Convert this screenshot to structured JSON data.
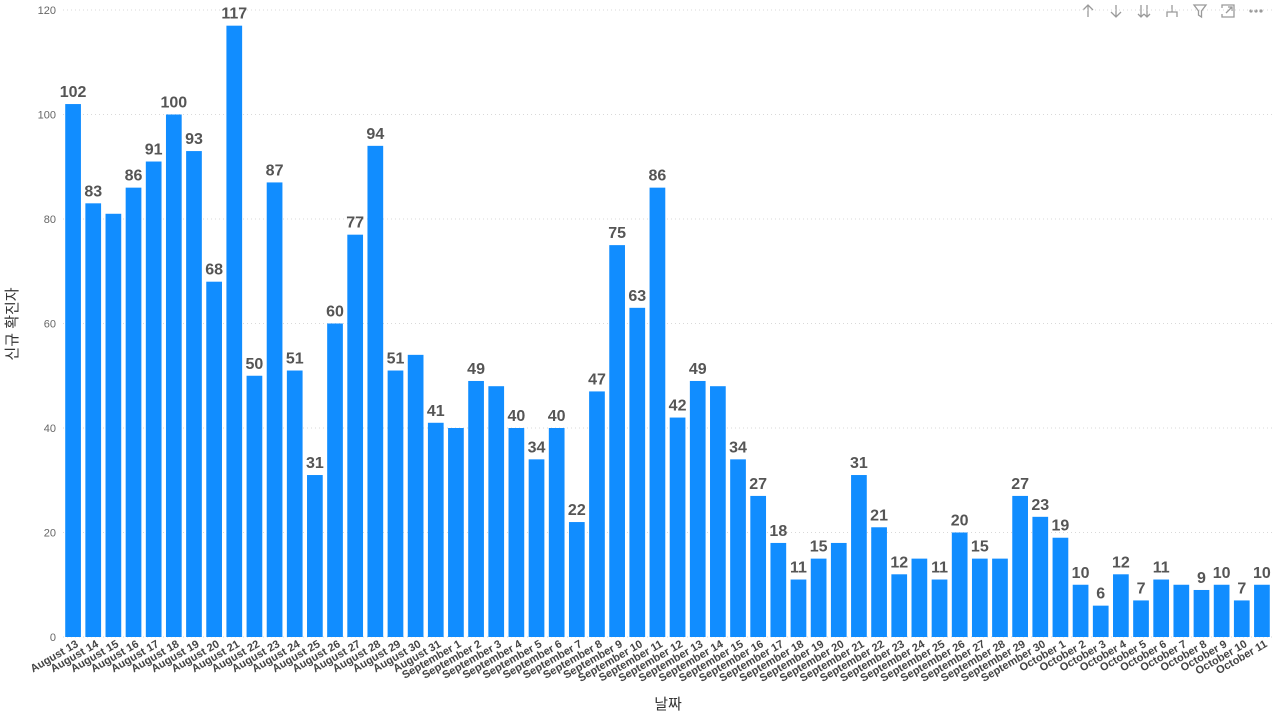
{
  "toolbar": {
    "icons": [
      "arrow-up-icon",
      "arrow-down-icon",
      "double-arrow-down-icon",
      "hierarchy-icon",
      "filter-icon",
      "focus-mode-icon",
      "more-options-icon"
    ]
  },
  "chart_data": {
    "type": "bar",
    "xlabel": "날짜",
    "ylabel": "신규 확진자",
    "ylim": [
      0,
      120
    ],
    "yticks": [
      0,
      20,
      40,
      60,
      80,
      100,
      120
    ],
    "grid": true,
    "bar_color": "#118DFF",
    "categories": [
      "August 13",
      "August 14",
      "August 15",
      "August 16",
      "August 17",
      "August 18",
      "August 19",
      "August 20",
      "August 21",
      "August 22",
      "August 23",
      "August 24",
      "August 25",
      "August 26",
      "August 27",
      "August 28",
      "August 29",
      "August 30",
      "August 31",
      "September 1",
      "September 2",
      "September 3",
      "September 4",
      "September 5",
      "September 6",
      "September 7",
      "September 8",
      "September 9",
      "September 10",
      "September 11",
      "September 12",
      "September 13",
      "September 14",
      "September 15",
      "September 16",
      "September 17",
      "September 18",
      "September 19",
      "September 20",
      "September 21",
      "September 22",
      "September 23",
      "September 24",
      "September 25",
      "September 26",
      "September 27",
      "September 28",
      "September 29",
      "September 30",
      "October 1",
      "October 2",
      "October 3",
      "October 4",
      "October 5",
      "October 6",
      "October 7",
      "October 8",
      "October 9",
      "October 10",
      "October 11"
    ],
    "values": [
      102,
      83,
      81,
      86,
      91,
      100,
      93,
      68,
      117,
      50,
      87,
      51,
      31,
      60,
      77,
      94,
      51,
      54,
      41,
      40,
      49,
      48,
      40,
      34,
      40,
      22,
      47,
      75,
      63,
      86,
      42,
      49,
      48,
      34,
      27,
      18,
      11,
      15,
      18,
      31,
      21,
      12,
      15,
      11,
      20,
      15,
      15,
      27,
      23,
      19,
      10,
      6,
      12,
      7,
      11,
      10,
      9,
      10,
      7,
      10
    ],
    "labels": [
      "102",
      "83",
      "",
      "86",
      "91",
      "100",
      "93",
      "68",
      "117",
      "50",
      "87",
      "51",
      "31",
      "60",
      "77",
      "94",
      "51",
      "",
      "41",
      "",
      "49",
      "",
      "40",
      "34",
      "40",
      "22",
      "47",
      "75",
      "63",
      "86",
      "42",
      "49",
      "",
      "34",
      "27",
      "18",
      "11",
      "15",
      "",
      "31",
      "21",
      "12",
      "",
      "11",
      "20",
      "15",
      "",
      "27",
      "23",
      "19",
      "10",
      "6",
      "12",
      "7",
      "11",
      "",
      "9",
      "10",
      "7",
      "10"
    ]
  }
}
